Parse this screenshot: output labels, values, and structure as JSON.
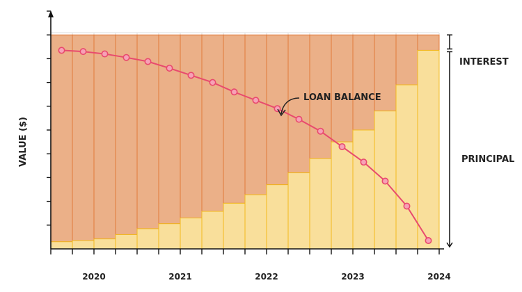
{
  "chart_data": {
    "type": "bar",
    "title": "",
    "xlabel": "",
    "ylabel": "VALUE ($)",
    "x_tick_labels": [
      "2020",
      "2021",
      "2022",
      "2023",
      "2024"
    ],
    "grid": true,
    "legend": "none",
    "annotations": {
      "interest": "INTEREST",
      "principal": "PRINCIPAL",
      "loan_balance": "LOAN BALANCE"
    },
    "ylim": [
      0,
      10
    ],
    "total_payment": 9,
    "categories": [
      "1",
      "2",
      "3",
      "4",
      "5",
      "6",
      "7",
      "8",
      "9",
      "10",
      "11",
      "12",
      "13",
      "14",
      "15",
      "16",
      "17",
      "18"
    ],
    "series": [
      {
        "name": "PRINCIPAL",
        "values": [
          0.3,
          0.35,
          0.42,
          0.6,
          0.85,
          1.06,
          1.3,
          1.58,
          1.92,
          2.28,
          2.7,
          3.2,
          3.8,
          4.5,
          5.0,
          5.8,
          6.9,
          8.35
        ]
      },
      {
        "name": "LOAN BALANCE",
        "values": [
          8.35,
          8.3,
          8.2,
          8.05,
          7.88,
          7.6,
          7.3,
          7.0,
          6.6,
          6.25,
          5.9,
          5.45,
          4.95,
          4.3,
          3.65,
          2.85,
          1.8,
          0.35
        ]
      }
    ],
    "colors": {
      "interest_fill": "#EBB088",
      "interest_stroke": "#E07A3A",
      "principal_fill": "#F9DF9B",
      "principal_stroke": "#F2B81E",
      "balance_line": "#E84A6E",
      "balance_marker_fill": "#F7A1B6",
      "grid": "#dddddd",
      "axis": "#111111"
    }
  }
}
